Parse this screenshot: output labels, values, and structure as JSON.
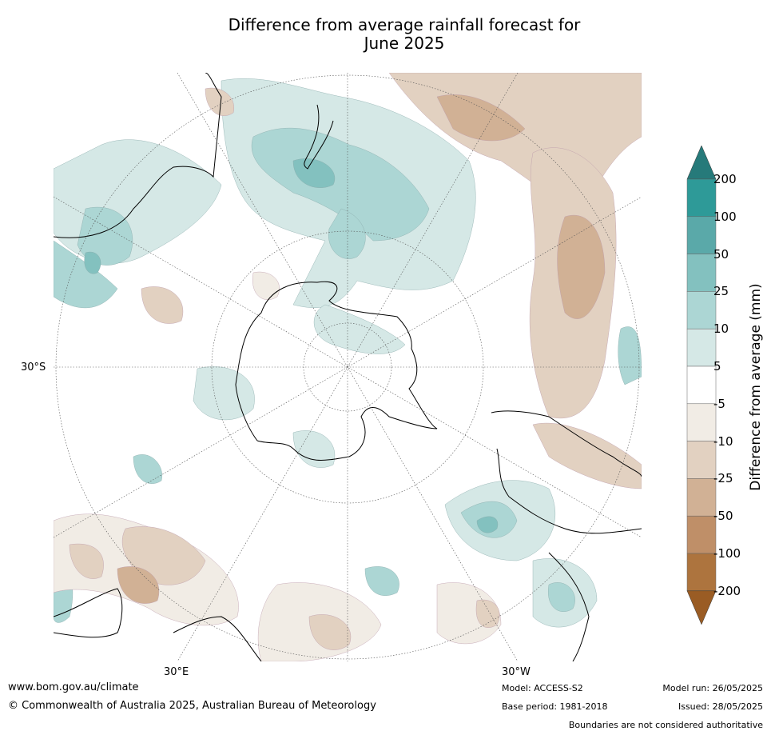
{
  "title_line1": "Difference from average rainfall forecast for",
  "title_line2": "June 2025",
  "map_labels": {
    "lat_30s": "30°S",
    "lon_30e": "30°E",
    "lon_30w": "30°W"
  },
  "legend": {
    "label": "Difference from average (mm)",
    "ticks": [
      "200",
      "100",
      "50",
      "25",
      "10",
      "5",
      "-5",
      "-10",
      "-25",
      "-50",
      "-100",
      "-200"
    ],
    "colors": {
      "gt200": "#267a7a",
      "100_200": "#2e9a98",
      "50_100": "#5aa9a9",
      "25_50": "#83c1bf",
      "10_25": "#acd6d4",
      "5_10": "#d5e8e6",
      "neutral": "#ffffff",
      "m5_m10": "#f1ece5",
      "m10_m25": "#e2d1c1",
      "m25_m50": "#d1b195",
      "m50_m100": "#bf8f68",
      "m100_m200": "#ad743e",
      "lt_m200": "#9a5c24"
    }
  },
  "footer": {
    "website": "www.bom.gov.au/climate",
    "copyright": "© Commonwealth of Australia 2025, Australian Bureau of Meteorology",
    "model": "Model: ACCESS-S2",
    "base_period": "Base period: 1981-2018",
    "model_run": "Model run: 26/05/2025",
    "issued": "Issued: 28/05/2025",
    "boundaries": "Boundaries are not considered authoritative"
  }
}
